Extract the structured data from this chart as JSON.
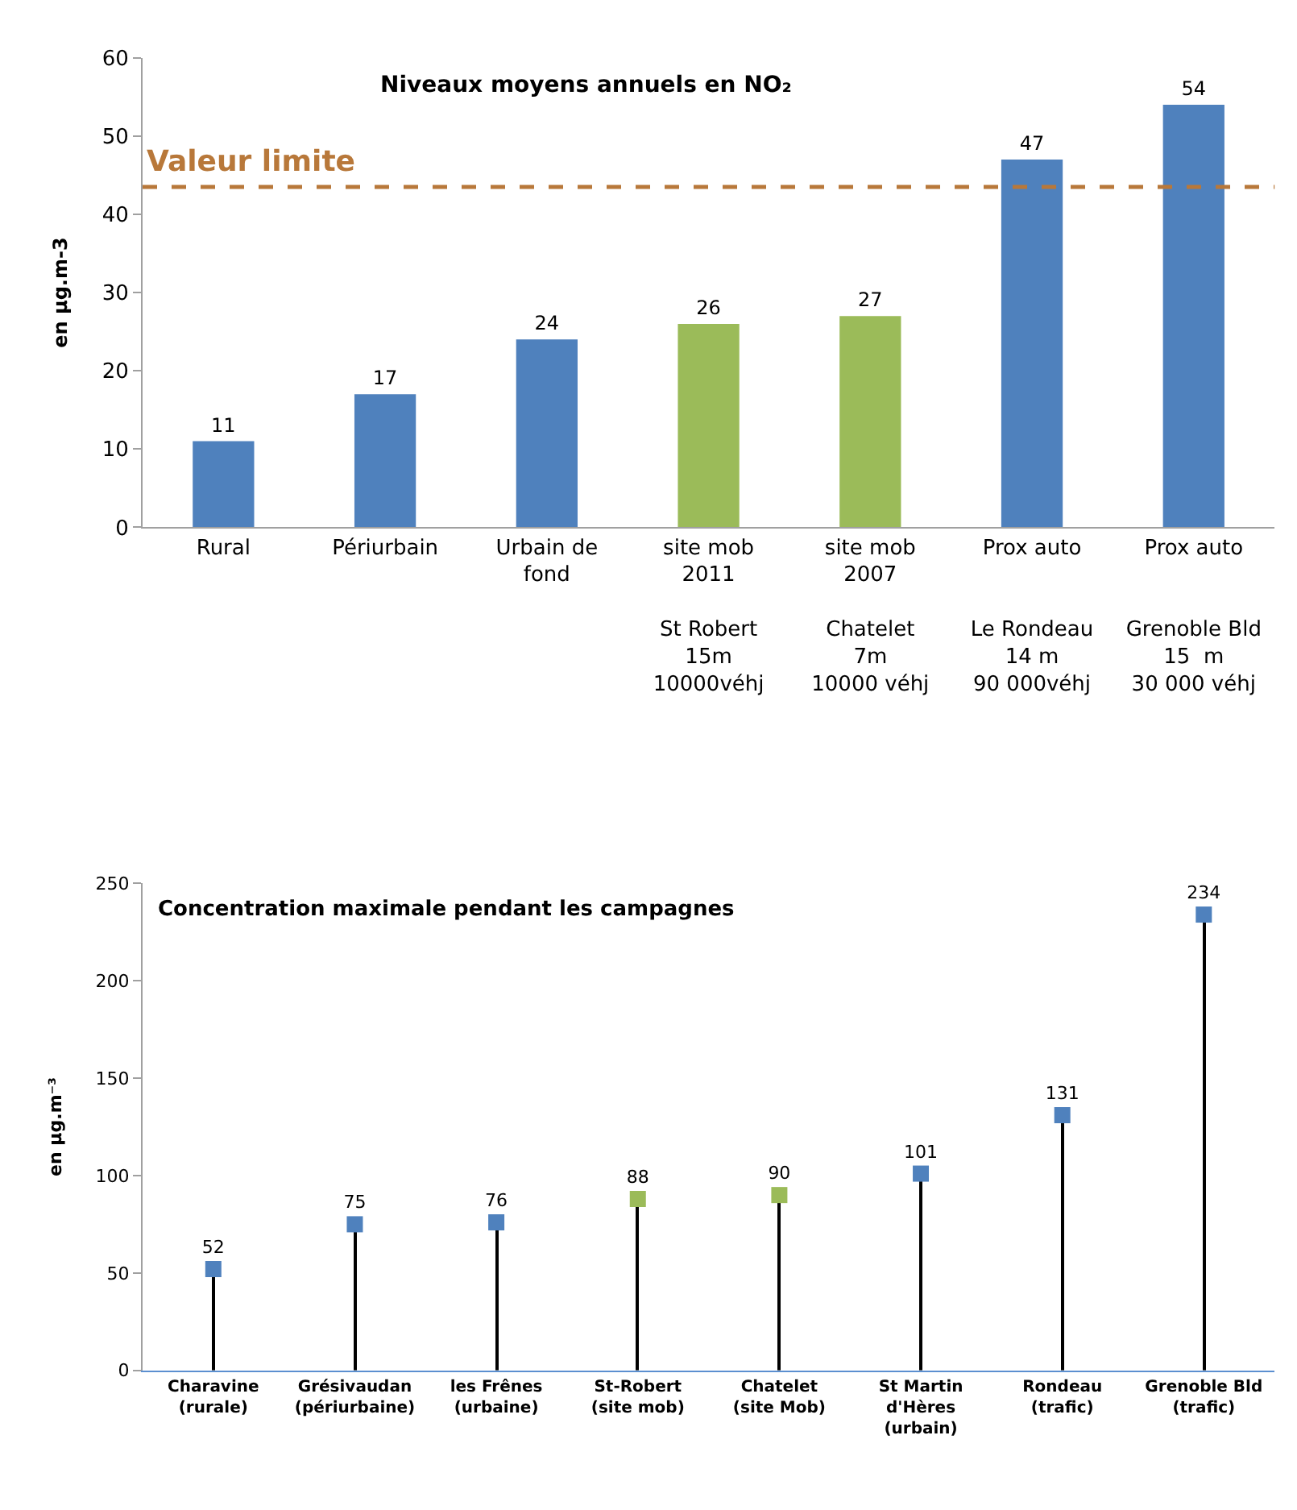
{
  "chart_data": [
    {
      "type": "bar",
      "title": "Niveaux moyens annuels en NO₂",
      "ylabel": "en µg.m-3",
      "categories": [
        "Rural",
        "Périurbain",
        "Urbain de\nfond",
        "site mob\n2011\n\nSt Robert\n15m\n10000véhj",
        "site mob\n2007\n\nChatelet\n7m\n10000 véhj",
        "Prox auto\n\n\nLe Rondeau\n14 m\n90 000véhj",
        "Prox auto\n\n\nGrenoble Bld\n15  m\n30 000 véhj"
      ],
      "values": [
        11,
        17,
        24,
        26,
        27,
        47,
        54
      ],
      "colors": [
        "#4f81bd",
        "#4f81bd",
        "#4f81bd",
        "#9bbb59",
        "#9bbb59",
        "#4f81bd",
        "#4f81bd"
      ],
      "ylim": [
        0,
        60
      ],
      "yticks": [
        0,
        10,
        20,
        30,
        40,
        50,
        60
      ],
      "data_labels": true,
      "ref_lines": [
        {
          "axis": "y",
          "value": 43.5,
          "label": "Valeur limite",
          "color": "#b8783a",
          "line_style": "dashed"
        }
      ]
    },
    {
      "type": "lollipop",
      "title": "Concentration maximale pendant les campagnes",
      "ylabel": "en µg.m⁻³",
      "categories": [
        "Charavine\n(rurale)",
        "Grésivaudan\n(périurbaine)",
        "les Frênes\n(urbaine)",
        "St-Robert\n(site mob)",
        "Chatelet\n(site Mob)",
        "St Martin\nd'Hères\n(urbain)",
        "Rondeau\n(trafic)",
        "Grenoble Bld\n(trafic)"
      ],
      "values": [
        52,
        75,
        76,
        88,
        90,
        101,
        131,
        234
      ],
      "colors": [
        "#4f81bd",
        "#4f81bd",
        "#4f81bd",
        "#9bbb59",
        "#9bbb59",
        "#4f81bd",
        "#4f81bd",
        "#4f81bd"
      ],
      "ylim": [
        0,
        250
      ],
      "yticks": [
        0,
        50,
        100,
        150,
        200,
        250
      ],
      "data_labels": true
    }
  ]
}
